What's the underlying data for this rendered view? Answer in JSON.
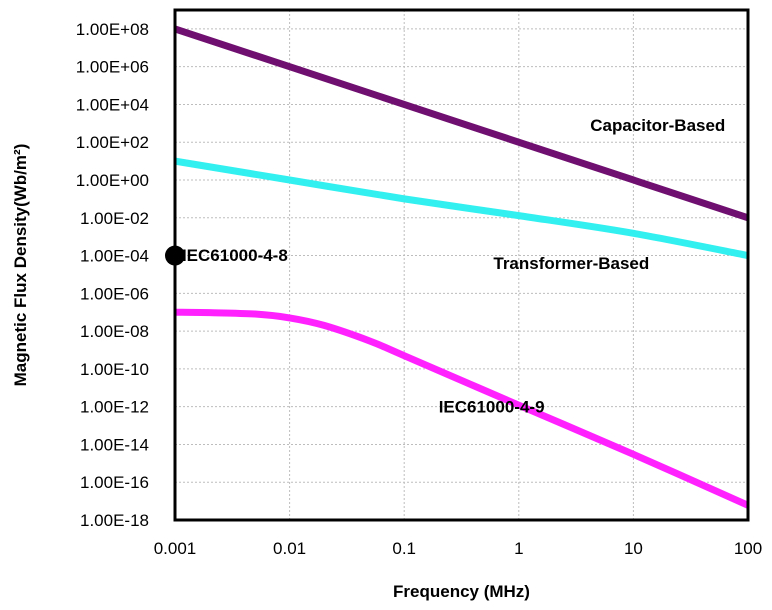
{
  "chart_data": {
    "type": "line",
    "title": "",
    "xlabel": "Frequency (MHz)",
    "ylabel": "Magnetic Flux Density(Wb/m²)",
    "x_scale": "log",
    "y_scale": "log",
    "xlim": [
      0.001,
      100
    ],
    "ylim": [
      1e-18,
      1000000000.0
    ],
    "grid": true,
    "x_ticks": [
      0.001,
      0.01,
      0.1,
      1,
      10,
      100
    ],
    "x_tick_labels": [
      "0.001",
      "0.01",
      "0.1",
      "1",
      "10",
      "100"
    ],
    "y_ticks": [
      1e-18,
      1e-16,
      1e-14,
      1e-12,
      1e-10,
      1e-08,
      1e-06,
      0.0001,
      0.01,
      1.0,
      100.0,
      10000.0,
      1000000.0,
      100000000.0
    ],
    "y_tick_labels": [
      "1.00E-18",
      "1.00E-16",
      "1.00E-14",
      "1.00E-12",
      "1.00E-10",
      "1.00E-08",
      "1.00E-06",
      "1.00E-04",
      "1.00E-02",
      "1.00E+00",
      "1.00E+02",
      "1.00E+04",
      "1.00E+06",
      "1.00E+08"
    ],
    "series": [
      {
        "name": "Capacitor-Based",
        "color": "#6f0f6f",
        "x": [
          0.001,
          100
        ],
        "y": [
          100000000.0,
          0.01
        ]
      },
      {
        "name": "Transformer-Based",
        "color": "#33f0f0",
        "x": [
          0.001,
          0.01,
          0.1,
          1,
          10,
          100
        ],
        "y": [
          10,
          1,
          0.1,
          0.013,
          0.0015,
          0.0001
        ]
      },
      {
        "name": "IEC61000-4-9",
        "color": "#ff22ff",
        "x": [
          0.001,
          0.002,
          0.005,
          0.01,
          0.02,
          0.05,
          0.1,
          1,
          10,
          100
        ],
        "y": [
          1e-07,
          9.5e-08,
          8e-08,
          5e-08,
          2e-08,
          3e-09,
          5e-10,
          1.2e-12,
          3e-15,
          6e-18
        ]
      }
    ],
    "points": [
      {
        "name": "IEC61000-4-8",
        "x": 0.001,
        "y": 0.0001,
        "color": "#000000"
      }
    ],
    "annotations": [
      {
        "text": "Capacitor-Based",
        "x": 4.2,
        "y": 400.0
      },
      {
        "text": "Transformer-Based",
        "x": 0.6,
        "y": 2e-05
      },
      {
        "text": "IEC61000-4-8",
        "x": 0.00115,
        "y": 5e-05
      },
      {
        "text": "IEC61000-4-9",
        "x": 0.2,
        "y": 5e-13
      }
    ]
  }
}
